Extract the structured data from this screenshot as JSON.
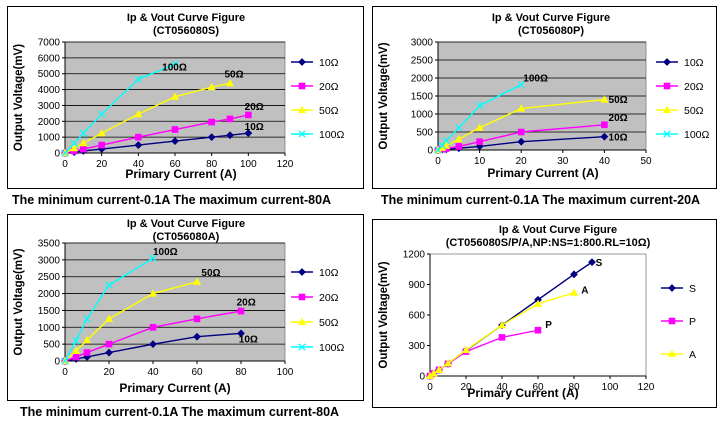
{
  "captions": {
    "p1": "The minimum current-0.1A  The maximum current-80A",
    "p2": "The minimum current-0.1A  The maximum current-20A",
    "p3": "The minimum current-0.1A  The maximum current-80A"
  },
  "chart_data": [
    {
      "type": "line",
      "title": "Ip & Vout Curve Figure",
      "subtitle": "(CT056080S)",
      "xlabel": "Primary  Current (A)",
      "ylabel": "Output Voltage(mV)",
      "xlim": [
        0,
        120
      ],
      "xticks": [
        0,
        20,
        40,
        60,
        80,
        100,
        120
      ],
      "ylim": [
        0,
        7000
      ],
      "yticks": [
        0,
        1000,
        2000,
        3000,
        4000,
        5000,
        6000,
        7000
      ],
      "grid": true,
      "legend": "right",
      "series": [
        {
          "name": "10Ω",
          "color": "#000080",
          "marker": "diamond",
          "points": [
            [
              0,
              0
            ],
            [
              5,
              60
            ],
            [
              10,
              130
            ],
            [
              20,
              250
            ],
            [
              40,
              500
            ],
            [
              60,
              750
            ],
            [
              80,
              1000
            ],
            [
              90,
              1120
            ],
            [
              100,
              1250
            ]
          ],
          "label": "10Ω",
          "label_at": [
            98,
            1450
          ]
        },
        {
          "name": "20Ω",
          "color": "#ff00ff",
          "marker": "square",
          "points": [
            [
              0,
              0
            ],
            [
              5,
              120
            ],
            [
              10,
              250
            ],
            [
              20,
              500
            ],
            [
              40,
              1000
            ],
            [
              60,
              1480
            ],
            [
              80,
              1950
            ],
            [
              90,
              2150
            ],
            [
              100,
              2400
            ]
          ],
          "label": "20Ω",
          "label_at": [
            98,
            2700
          ]
        },
        {
          "name": "50Ω",
          "color": "#ffff00",
          "marker": "triangle",
          "points": [
            [
              0,
              0
            ],
            [
              5,
              300
            ],
            [
              10,
              620
            ],
            [
              20,
              1250
            ],
            [
              40,
              2450
            ],
            [
              60,
              3550
            ],
            [
              80,
              4150
            ],
            [
              90,
              4400
            ]
          ],
          "label": "50Ω",
          "label_at": [
            87,
            4750
          ]
        },
        {
          "name": "100Ω",
          "color": "#00ffff",
          "marker": "x",
          "points": [
            [
              0,
              0
            ],
            [
              5,
              600
            ],
            [
              10,
              1250
            ],
            [
              20,
              2450
            ],
            [
              40,
              4650
            ],
            [
              60,
              5600
            ]
          ],
          "label": "100Ω",
          "label_at": [
            53,
            5200
          ]
        }
      ]
    },
    {
      "type": "line",
      "title": "Ip & Vout Curve Figure",
      "subtitle": "(CT056080P)",
      "xlabel": "Primary  Current (A)",
      "ylabel": "Output Voltage(mV)",
      "xlim": [
        0,
        50
      ],
      "xticks": [
        0,
        10,
        20,
        30,
        40,
        50
      ],
      "ylim": [
        0,
        3000
      ],
      "yticks": [
        0,
        500,
        1000,
        1500,
        2000,
        2500,
        3000
      ],
      "grid": true,
      "legend": "right",
      "series": [
        {
          "name": "10Ω",
          "color": "#000080",
          "marker": "diamond",
          "points": [
            [
              0,
              0
            ],
            [
              1,
              10
            ],
            [
              2,
              20
            ],
            [
              5,
              50
            ],
            [
              10,
              100
            ],
            [
              20,
              230
            ],
            [
              40,
              370
            ]
          ],
          "label": "10Ω",
          "label_at": [
            41,
            270
          ]
        },
        {
          "name": "20Ω",
          "color": "#ff00ff",
          "marker": "square",
          "points": [
            [
              0,
              0
            ],
            [
              1,
              20
            ],
            [
              2,
              40
            ],
            [
              5,
              100
            ],
            [
              10,
              230
            ],
            [
              20,
              500
            ],
            [
              40,
              700
            ]
          ],
          "label": "20Ω",
          "label_at": [
            41,
            800
          ]
        },
        {
          "name": "50Ω",
          "color": "#ffff00",
          "marker": "triangle",
          "points": [
            [
              0,
              0
            ],
            [
              1,
              60
            ],
            [
              2,
              120
            ],
            [
              5,
              300
            ],
            [
              10,
              620
            ],
            [
              20,
              1150
            ],
            [
              40,
              1400
            ]
          ],
          "label": "50Ω",
          "label_at": [
            41,
            1300
          ]
        },
        {
          "name": "100Ω",
          "color": "#00ffff",
          "marker": "x",
          "points": [
            [
              0,
              0
            ],
            [
              1,
              130
            ],
            [
              2,
              260
            ],
            [
              5,
              620
            ],
            [
              10,
              1230
            ],
            [
              20,
              1820
            ]
          ],
          "label": "100Ω",
          "label_at": [
            20.5,
            1900
          ]
        }
      ]
    },
    {
      "type": "line",
      "title": "Ip & Vout Curve Figure",
      "subtitle": "(CT056080A)",
      "xlabel": "Primary  Current (A)",
      "ylabel": "Output Voltage(mV)",
      "xlim": [
        0,
        100
      ],
      "xticks": [
        0,
        20,
        40,
        60,
        80,
        100
      ],
      "ylim": [
        0,
        3500
      ],
      "yticks": [
        0,
        500,
        1000,
        1500,
        2000,
        2500,
        3000,
        3500
      ],
      "grid": true,
      "legend": "right",
      "series": [
        {
          "name": "10Ω",
          "color": "#000080",
          "marker": "diamond",
          "points": [
            [
              0,
              0
            ],
            [
              5,
              60
            ],
            [
              10,
              120
            ],
            [
              20,
              250
            ],
            [
              40,
              500
            ],
            [
              60,
              720
            ],
            [
              80,
              820
            ]
          ],
          "label": "10Ω",
          "label_at": [
            79,
            550
          ]
        },
        {
          "name": "20Ω",
          "color": "#ff00ff",
          "marker": "square",
          "points": [
            [
              0,
              0
            ],
            [
              5,
              120
            ],
            [
              10,
              250
            ],
            [
              20,
              500
            ],
            [
              40,
              1000
            ],
            [
              60,
              1250
            ],
            [
              80,
              1480
            ]
          ],
          "label": "20Ω",
          "label_at": [
            78,
            1650
          ]
        },
        {
          "name": "50Ω",
          "color": "#ffff00",
          "marker": "triangle",
          "points": [
            [
              0,
              0
            ],
            [
              5,
              300
            ],
            [
              10,
              620
            ],
            [
              20,
              1250
            ],
            [
              40,
              2000
            ],
            [
              60,
              2350
            ]
          ],
          "label": "50Ω",
          "label_at": [
            62,
            2520
          ]
        },
        {
          "name": "100Ω",
          "color": "#00ffff",
          "marker": "x",
          "points": [
            [
              0,
              0
            ],
            [
              5,
              600
            ],
            [
              10,
              1250
            ],
            [
              20,
              2250
            ],
            [
              40,
              3050
            ]
          ],
          "label": "100Ω",
          "label_at": [
            40,
            3150
          ]
        }
      ]
    },
    {
      "type": "line",
      "title": "Ip & Vout Curve Figure",
      "subtitle": "(CT056080S/P/A,NP:NS=1:800.RL=10Ω)",
      "xlabel": "Primary   Current (A)",
      "ylabel": "Output Voltage(mV)",
      "xlim": [
        0,
        120
      ],
      "xticks": [
        0,
        20,
        40,
        60,
        80,
        100,
        120
      ],
      "ylim": [
        0,
        1200
      ],
      "yticks": [
        0,
        300,
        600,
        900,
        1200
      ],
      "grid": false,
      "legend": "right",
      "series": [
        {
          "name": "S",
          "color": "#000080",
          "marker": "diamond",
          "points": [
            [
              0,
              0
            ],
            [
              2,
              25
            ],
            [
              5,
              60
            ],
            [
              10,
              120
            ],
            [
              20,
              250
            ],
            [
              40,
              500
            ],
            [
              60,
              750
            ],
            [
              80,
              1000
            ],
            [
              90,
              1120
            ]
          ],
          "label": "S",
          "label_at": [
            92,
            1080
          ]
        },
        {
          "name": "P",
          "color": "#ff00ff",
          "marker": "square",
          "points": [
            [
              0,
              0
            ],
            [
              2,
              25
            ],
            [
              5,
              60
            ],
            [
              10,
              120
            ],
            [
              20,
              240
            ],
            [
              40,
              380
            ],
            [
              60,
              450
            ]
          ],
          "label": "P",
          "label_at": [
            64,
            470
          ]
        },
        {
          "name": "A",
          "color": "#ffff00",
          "marker": "triangle",
          "points": [
            [
              0,
              0
            ],
            [
              2,
              25
            ],
            [
              5,
              60
            ],
            [
              10,
              125
            ],
            [
              20,
              255
            ],
            [
              40,
              500
            ],
            [
              60,
              710
            ],
            [
              80,
              820
            ]
          ],
          "label": "A",
          "label_at": [
            84,
            810
          ]
        }
      ]
    }
  ]
}
